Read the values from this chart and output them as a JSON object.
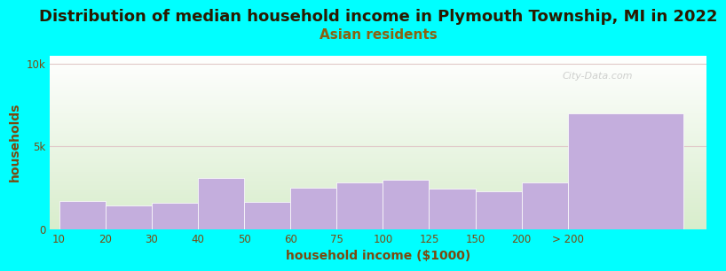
{
  "title": "Distribution of median household income in Plymouth Township, MI in 2022",
  "subtitle": "Asian residents",
  "xlabel": "household income ($1000)",
  "ylabel": "households",
  "background_color": "#00FFFF",
  "plot_bg_color_top": "#FFFFFF",
  "plot_bg_color_bottom": "#D8EDCC",
  "bar_color": "#C4AEDD",
  "bar_edge_color": "#FFFFFF",
  "categories": [
    "10",
    "20",
    "30",
    "40",
    "50",
    "60",
    "75",
    "100",
    "125",
    "150",
    "200",
    "> 200"
  ],
  "values": [
    1700,
    1400,
    1600,
    3100,
    1650,
    2500,
    2800,
    3000,
    2450,
    2300,
    2800,
    7000
  ],
  "bar_lefts": [
    0,
    1,
    2,
    3,
    4,
    5,
    6,
    7,
    8,
    9,
    10,
    11
  ],
  "bar_widths": [
    1,
    1,
    1,
    1,
    1,
    1,
    1,
    1,
    1,
    1,
    1,
    2.5
  ],
  "ylim": [
    0,
    10500
  ],
  "yticks": [
    0,
    5000,
    10000
  ],
  "ytick_labels": [
    "0",
    "5k",
    "10k"
  ],
  "title_fontsize": 13,
  "subtitle_fontsize": 11,
  "axis_label_fontsize": 10,
  "tick_fontsize": 8.5,
  "watermark": "City-Data.com",
  "grid_color": "#E0C8C8",
  "tick_color": "#7A4A10",
  "title_color": "#2A1A00",
  "subtitle_color": "#8B6010",
  "label_color": "#7A4A10"
}
